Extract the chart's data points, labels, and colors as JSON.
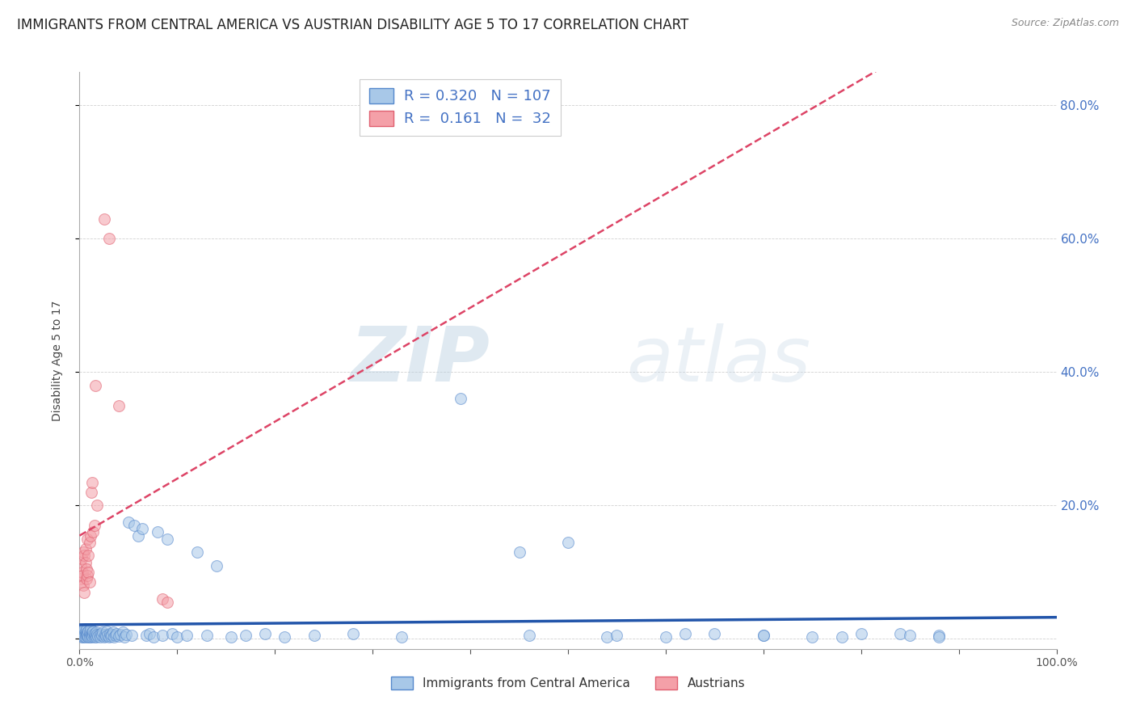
{
  "title": "IMMIGRANTS FROM CENTRAL AMERICA VS AUSTRIAN DISABILITY AGE 5 TO 17 CORRELATION CHART",
  "source": "Source: ZipAtlas.com",
  "ylabel": "Disability Age 5 to 17",
  "x_min": 0.0,
  "x_max": 1.0,
  "y_min": -0.015,
  "y_max": 0.85,
  "yticks": [
    0.0,
    0.2,
    0.4,
    0.6,
    0.8
  ],
  "ytick_labels": [
    "",
    "20.0%",
    "40.0%",
    "60.0%",
    "80.0%"
  ],
  "xticks": [
    0.0,
    0.1,
    0.2,
    0.3,
    0.4,
    0.5,
    0.6,
    0.7,
    0.8,
    0.9,
    1.0
  ],
  "xtick_labels": [
    "0.0%",
    "",
    "",
    "",
    "",
    "",
    "",
    "",
    "",
    "",
    "100.0%"
  ],
  "blue_R": 0.32,
  "blue_N": 107,
  "pink_R": 0.161,
  "pink_N": 32,
  "blue_color": "#a8c8e8",
  "pink_color": "#f4a0a8",
  "blue_edge_color": "#5588cc",
  "pink_edge_color": "#e06070",
  "blue_line_color": "#2255aa",
  "pink_line_color": "#dd4466",
  "title_fontsize": 12,
  "axis_label_fontsize": 10,
  "tick_fontsize": 10,
  "legend_fontsize": 12,
  "blue_scatter_x": [
    0.001,
    0.001,
    0.002,
    0.002,
    0.003,
    0.003,
    0.003,
    0.004,
    0.004,
    0.004,
    0.005,
    0.005,
    0.005,
    0.006,
    0.006,
    0.006,
    0.007,
    0.007,
    0.007,
    0.008,
    0.008,
    0.008,
    0.009,
    0.009,
    0.01,
    0.01,
    0.01,
    0.011,
    0.011,
    0.012,
    0.012,
    0.013,
    0.013,
    0.014,
    0.014,
    0.015,
    0.015,
    0.016,
    0.017,
    0.017,
    0.018,
    0.019,
    0.02,
    0.021,
    0.022,
    0.023,
    0.024,
    0.025,
    0.026,
    0.027,
    0.028,
    0.029,
    0.03,
    0.031,
    0.032,
    0.033,
    0.034,
    0.035,
    0.037,
    0.038,
    0.04,
    0.042,
    0.044,
    0.046,
    0.048,
    0.05,
    0.053,
    0.056,
    0.06,
    0.064,
    0.068,
    0.072,
    0.076,
    0.08,
    0.085,
    0.09,
    0.095,
    0.1,
    0.11,
    0.12,
    0.13,
    0.14,
    0.155,
    0.17,
    0.19,
    0.21,
    0.24,
    0.28,
    0.33,
    0.39,
    0.46,
    0.54,
    0.62,
    0.7,
    0.78,
    0.84,
    0.88,
    0.45,
    0.5,
    0.55,
    0.6,
    0.65,
    0.7,
    0.75,
    0.8,
    0.85,
    0.88
  ],
  "blue_scatter_y": [
    0.01,
    0.005,
    0.008,
    0.003,
    0.012,
    0.004,
    0.007,
    0.005,
    0.01,
    0.003,
    0.008,
    0.015,
    0.004,
    0.006,
    0.012,
    0.003,
    0.009,
    0.005,
    0.015,
    0.004,
    0.01,
    0.007,
    0.003,
    0.012,
    0.006,
    0.01,
    0.003,
    0.008,
    0.015,
    0.005,
    0.003,
    0.01,
    0.004,
    0.007,
    0.012,
    0.003,
    0.008,
    0.005,
    0.003,
    0.01,
    0.007,
    0.004,
    0.006,
    0.003,
    0.008,
    0.005,
    0.01,
    0.003,
    0.007,
    0.004,
    0.012,
    0.005,
    0.003,
    0.008,
    0.004,
    0.006,
    0.01,
    0.003,
    0.005,
    0.008,
    0.004,
    0.006,
    0.01,
    0.003,
    0.007,
    0.175,
    0.005,
    0.17,
    0.155,
    0.165,
    0.005,
    0.008,
    0.003,
    0.16,
    0.005,
    0.15,
    0.008,
    0.003,
    0.005,
    0.13,
    0.005,
    0.11,
    0.003,
    0.005,
    0.008,
    0.003,
    0.005,
    0.008,
    0.003,
    0.36,
    0.005,
    0.003,
    0.008,
    0.005,
    0.003,
    0.008,
    0.005,
    0.13,
    0.145,
    0.005,
    0.003,
    0.008,
    0.005,
    0.003,
    0.008,
    0.005,
    0.003
  ],
  "pink_scatter_x": [
    0.001,
    0.001,
    0.002,
    0.002,
    0.003,
    0.003,
    0.004,
    0.004,
    0.005,
    0.005,
    0.006,
    0.006,
    0.007,
    0.007,
    0.008,
    0.008,
    0.009,
    0.009,
    0.01,
    0.01,
    0.011,
    0.012,
    0.013,
    0.014,
    0.015,
    0.016,
    0.018,
    0.025,
    0.03,
    0.04,
    0.085,
    0.09
  ],
  "pink_scatter_y": [
    0.11,
    0.09,
    0.12,
    0.085,
    0.1,
    0.095,
    0.13,
    0.08,
    0.125,
    0.07,
    0.115,
    0.135,
    0.09,
    0.105,
    0.095,
    0.15,
    0.1,
    0.125,
    0.085,
    0.145,
    0.155,
    0.22,
    0.235,
    0.16,
    0.17,
    0.38,
    0.2,
    0.63,
    0.6,
    0.35,
    0.06,
    0.055
  ],
  "watermark_text_zip": "ZIP",
  "watermark_text_atlas": "atlas",
  "legend_blue_label": "Immigrants from Central America",
  "legend_pink_label": "Austrians",
  "blue_trend_start_x": 0.0,
  "blue_trend_end_x": 1.0,
  "pink_trend_start_x": 0.0,
  "pink_trend_end_x": 0.5
}
